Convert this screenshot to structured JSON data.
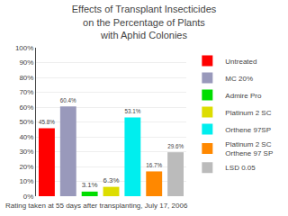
{
  "chart_data": {
    "type": "bar",
    "title": "Effects of Transplant Insecticides\non the Percentage of Plants\nwith Aphid Colonies",
    "categories": [
      "Untreated",
      "MC 20%",
      "Admire Pro",
      "Platinum 2 SC",
      "Orthene 97SP",
      "Platinum 2 SC\nOrthene 97 SP",
      "LSD 0.05"
    ],
    "values": [
      45.8,
      60.4,
      3.1,
      6.3,
      53.1,
      16.7,
      29.6
    ],
    "value_labels": [
      "45.8%",
      "60.4%",
      "3.1%",
      "6.3%",
      "53.1%",
      "16.7%",
      "29.6%"
    ],
    "colors": [
      "#FF0000",
      "#9999BB",
      "#00DD00",
      "#DDDD00",
      "#00EEEE",
      "#FF8800",
      "#BBBBBB"
    ],
    "ylim": [
      0,
      100
    ],
    "yticks": [
      {
        "value": 0,
        "label": "0%"
      },
      {
        "value": 10,
        "label": "10%"
      },
      {
        "value": 20,
        "label": "20%"
      },
      {
        "value": 30,
        "label": "30%"
      },
      {
        "value": 40,
        "label": "40%"
      },
      {
        "value": 50,
        "label": "50%"
      },
      {
        "value": 60,
        "label": "60%"
      },
      {
        "value": 70,
        "label": "70%"
      },
      {
        "value": 80,
        "label": "80%"
      },
      {
        "value": 90,
        "label": "90%"
      },
      {
        "value": 100,
        "label": "100%"
      }
    ],
    "grid": true,
    "data_labels": true,
    "legend": "right",
    "tick_labels": "y",
    "annotations": [
      "Rating taken at 55 days after transplanting, July 17, 2006"
    ]
  }
}
